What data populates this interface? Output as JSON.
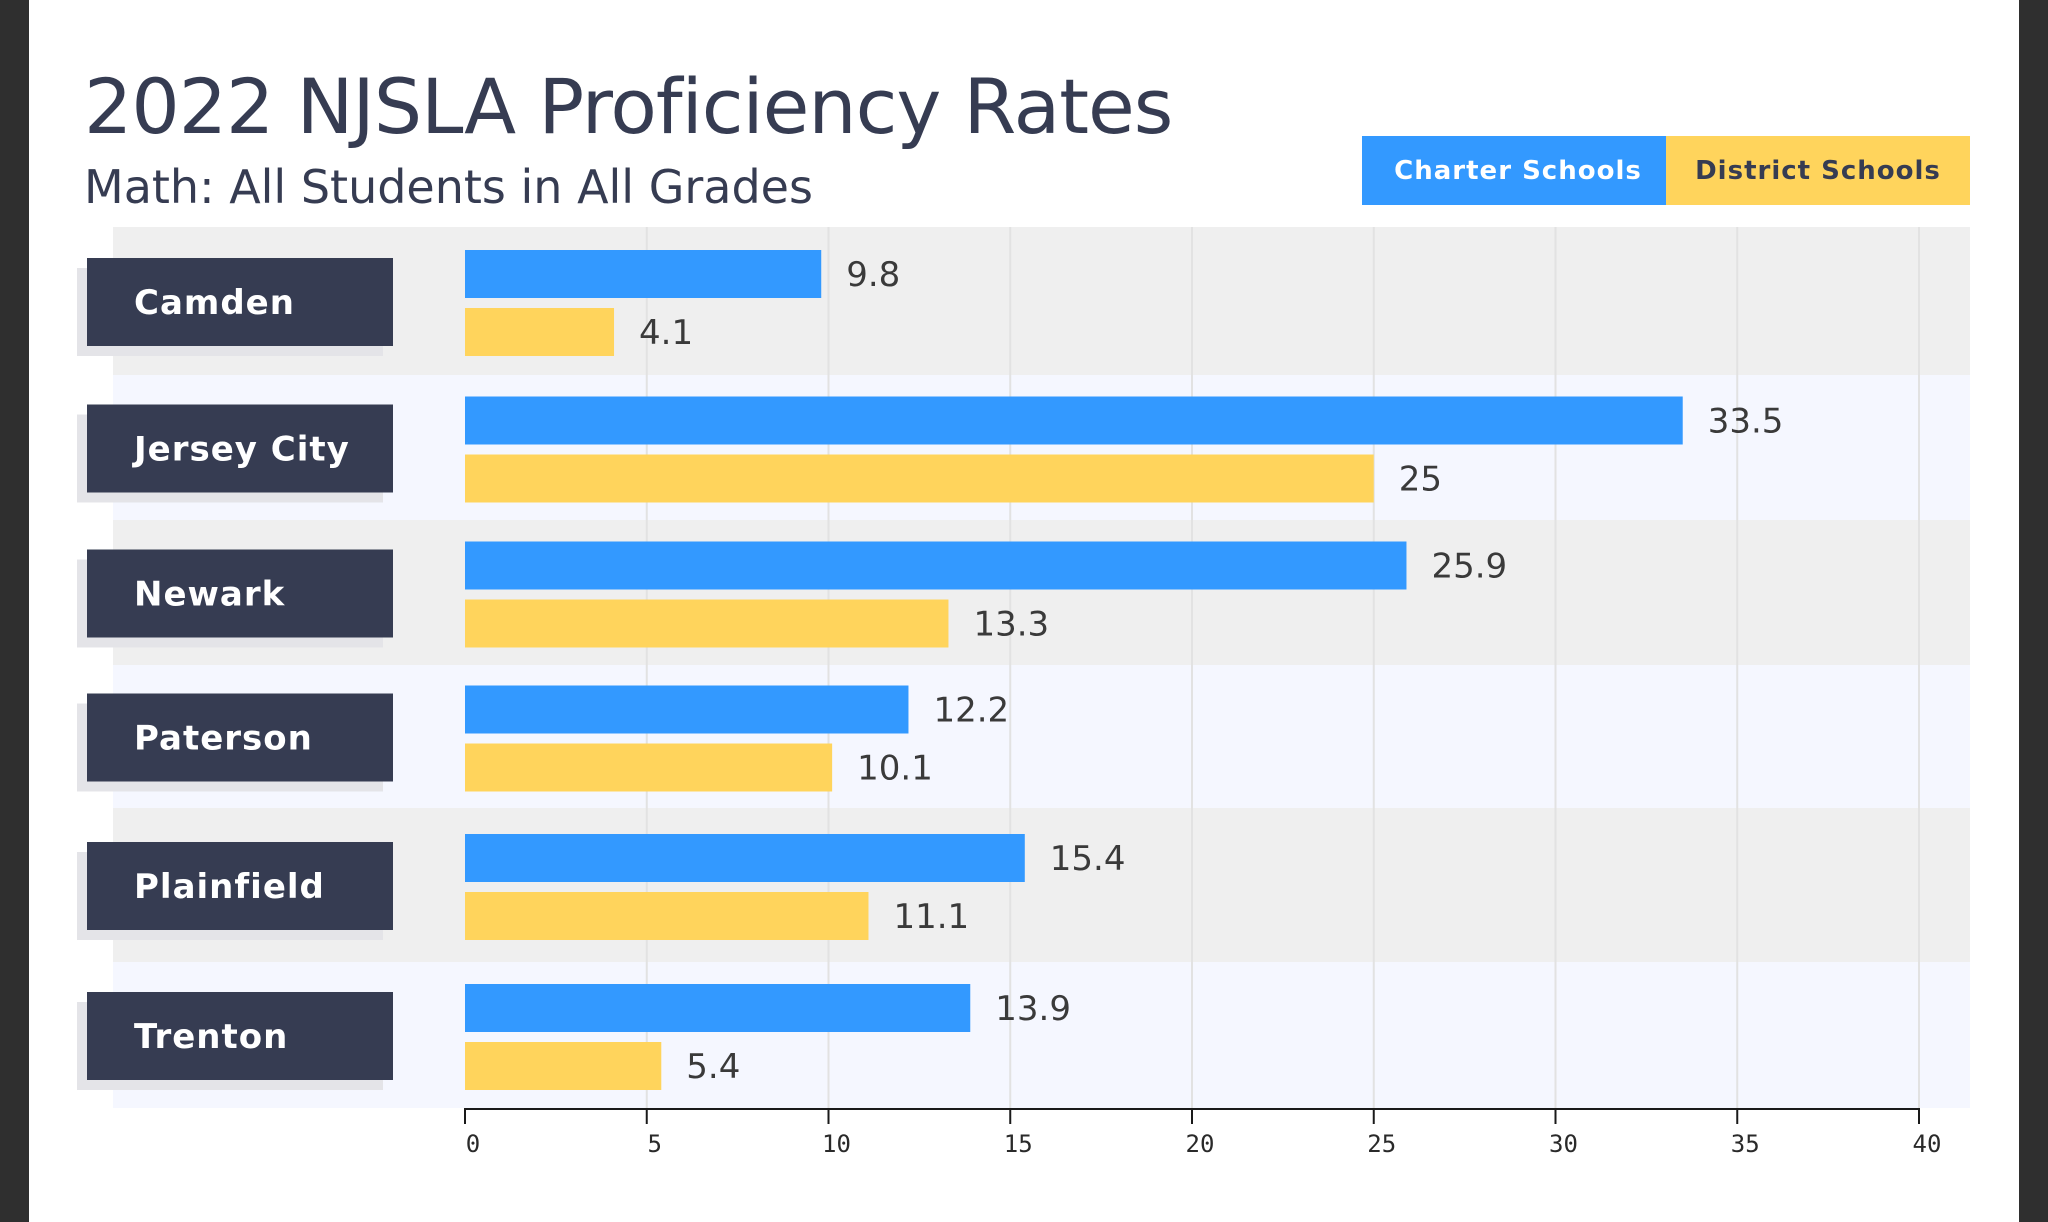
{
  "title": "2022 NJSLA Proficiency Rates",
  "subtitle": "Math: All Students in All Grades",
  "legend": [
    {
      "label": "Charter Schools",
      "color": "#3399ff",
      "text_color": "#ffffff"
    },
    {
      "label": "District Schools",
      "color": "#ffd45c",
      "text_color": "#363c52"
    }
  ],
  "colors": {
    "label_box": "#363c52",
    "label_shadow": "#e4e4e8",
    "band_odd": "#efefef",
    "band_even": "#f5f7ff",
    "value_text": "#3a3a3a",
    "gridline": "#e2e2e2"
  },
  "chart_data": {
    "type": "bar",
    "orientation": "horizontal",
    "categories": [
      "Camden",
      "Jersey City",
      "Newark",
      "Paterson",
      "Plainfield",
      "Trenton"
    ],
    "series": [
      {
        "name": "Charter Schools",
        "values": [
          9.8,
          33.5,
          25.9,
          12.2,
          15.4,
          13.9
        ]
      },
      {
        "name": "District Schools",
        "values": [
          4.1,
          25,
          13.3,
          10.1,
          11.1,
          5.4
        ]
      }
    ],
    "xlim": [
      0,
      40
    ],
    "xticks": [
      "0",
      "5",
      "10",
      "15",
      "20",
      "25",
      "30",
      "35",
      "40"
    ],
    "grid": true,
    "legend_position": "top-right",
    "data_labels": true
  }
}
